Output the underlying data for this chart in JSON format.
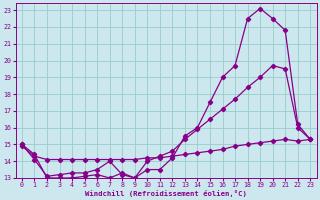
{
  "bg_color": "#cce8ee",
  "line_color": "#880088",
  "grid_color": "#99cccc",
  "xlabel": "Windchill (Refroidissement éolien,°C)",
  "xlim": [
    -0.5,
    23.5
  ],
  "ylim": [
    13,
    23.4
  ],
  "xticks": [
    0,
    1,
    2,
    3,
    4,
    5,
    6,
    7,
    8,
    9,
    10,
    11,
    12,
    13,
    14,
    15,
    16,
    17,
    18,
    19,
    20,
    21,
    22,
    23
  ],
  "yticks": [
    13,
    14,
    15,
    16,
    17,
    18,
    19,
    20,
    21,
    22,
    23
  ],
  "line1_x": [
    0,
    1,
    2,
    3,
    4,
    5,
    6,
    7,
    8,
    9,
    10,
    11,
    12,
    13,
    14,
    15,
    16,
    17,
    18,
    19,
    20,
    21,
    22,
    23
  ],
  "line1_y": [
    15.0,
    14.4,
    13.0,
    13.0,
    13.0,
    13.1,
    13.2,
    13.0,
    13.3,
    13.0,
    13.5,
    13.5,
    14.2,
    15.5,
    16.0,
    17.5,
    19.0,
    19.7,
    22.5,
    23.1,
    22.5,
    21.8,
    16.2,
    15.3
  ],
  "line2_x": [
    0,
    1,
    2,
    3,
    4,
    5,
    6,
    7,
    8,
    9,
    10,
    11,
    12,
    13,
    14,
    15,
    16,
    17,
    18,
    19,
    20,
    21,
    22,
    23
  ],
  "line2_y": [
    15.0,
    14.1,
    13.1,
    13.2,
    13.3,
    13.3,
    13.5,
    14.0,
    13.2,
    13.0,
    14.0,
    14.3,
    14.6,
    15.3,
    15.9,
    16.5,
    17.1,
    17.7,
    18.4,
    19.0,
    19.7,
    19.5,
    16.0,
    15.3
  ],
  "line3_x": [
    0,
    1,
    2,
    3,
    4,
    5,
    6,
    7,
    8,
    9,
    10,
    11,
    12,
    13,
    14,
    15,
    16,
    17,
    18,
    19,
    20,
    21,
    22,
    23
  ],
  "line3_y": [
    14.9,
    14.3,
    14.1,
    14.1,
    14.1,
    14.1,
    14.1,
    14.1,
    14.1,
    14.1,
    14.2,
    14.2,
    14.3,
    14.4,
    14.5,
    14.6,
    14.7,
    14.9,
    15.0,
    15.1,
    15.2,
    15.3,
    15.2,
    15.3
  ]
}
